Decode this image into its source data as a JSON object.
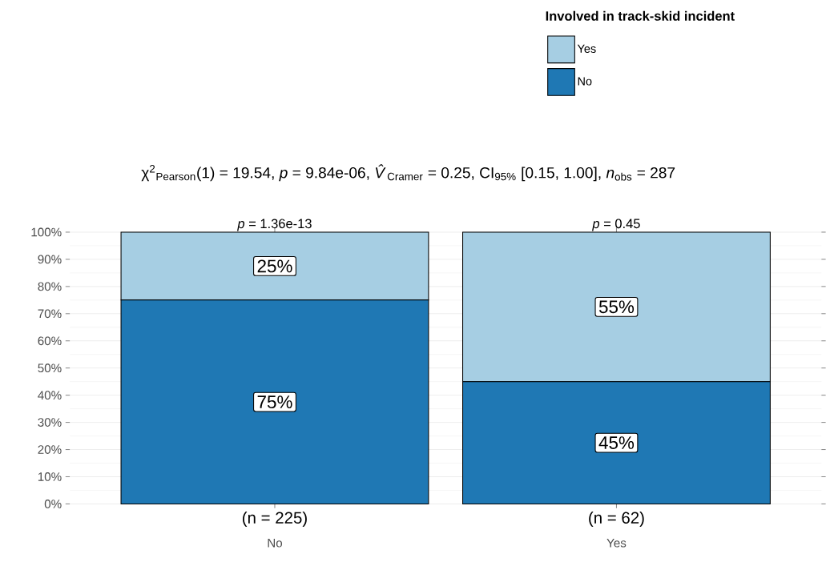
{
  "chart_data": {
    "type": "bar",
    "stacked": true,
    "title": "χ$^{2}$$_{Pearson}$(1) = 19.54, *p* = 9.84e-06, *V̂*$_{Cramer}$ = 0.25, CI$_{95%}$ [0.15, 1.00], *n*$_{obs}$ = 287",
    "legend_title": "Involved in track-skid incident",
    "categories": [
      "No",
      "Yes"
    ],
    "series": [
      {
        "name": "No",
        "color": "#1f78b4",
        "values": [
          75,
          45
        ],
        "value_labels": [
          "75%",
          "45%"
        ]
      },
      {
        "name": "Yes",
        "color": "#a6cee3",
        "values": [
          25,
          55
        ],
        "value_labels": [
          "25%",
          "55%"
        ]
      }
    ],
    "ylim": [
      0,
      100
    ],
    "yticks": [
      {
        "value": 0,
        "label": "0%"
      },
      {
        "value": 10,
        "label": "10%"
      },
      {
        "value": 20,
        "label": "20%"
      },
      {
        "value": 30,
        "label": "30%"
      },
      {
        "value": 40,
        "label": "40%"
      },
      {
        "value": 50,
        "label": "50%"
      },
      {
        "value": 60,
        "label": "60%"
      },
      {
        "value": 70,
        "label": "70%"
      },
      {
        "value": 80,
        "label": "80%"
      },
      {
        "value": 90,
        "label": "90%"
      },
      {
        "value": 100,
        "label": "100%"
      }
    ],
    "grid": "y",
    "legend": "top right",
    "annotations": [
      {
        "text": "*p* = 1.36e-13",
        "x": "No",
        "y": 100
      },
      {
        "text": "*p* = 0.45",
        "x": "Yes",
        "y": 100
      },
      {
        "text": "(n = 225)",
        "x": "No",
        "y": 0
      },
      {
        "text": "(n = 62)",
        "x": "Yes",
        "y": 0
      }
    ]
  }
}
